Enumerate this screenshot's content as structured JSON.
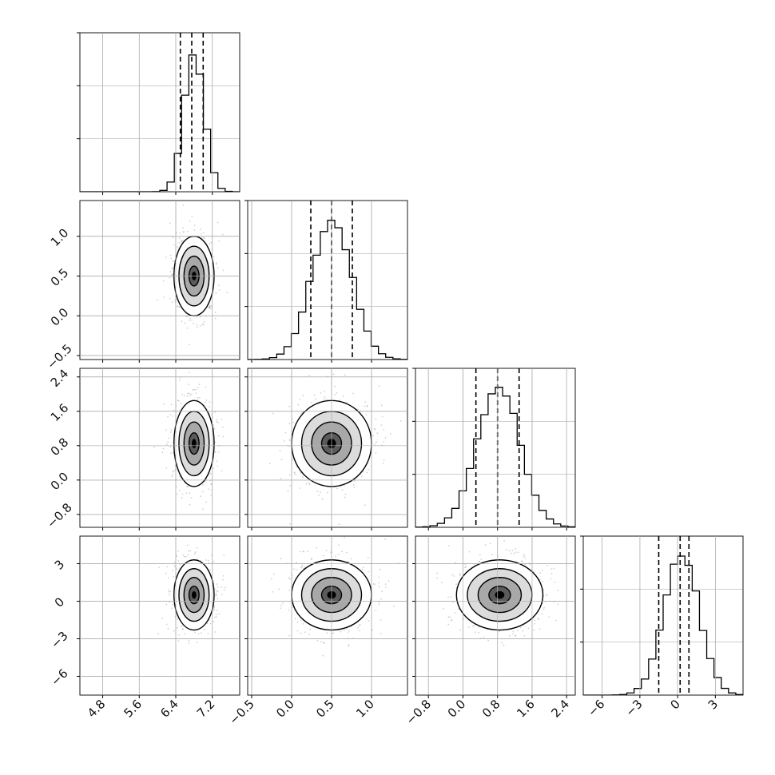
{
  "chart_data": {
    "type": "corner",
    "parameters": 4,
    "grid": true,
    "quantile_lines": "dashed",
    "axes": {
      "p0": {
        "range": [
          4.3,
          7.8
        ],
        "ticks": [
          4.8,
          5.6,
          6.4,
          7.2
        ],
        "tick_labels": [
          "4.8",
          "5.6",
          "6.4",
          "7.2"
        ]
      },
      "p1": {
        "range": [
          -0.55,
          1.45
        ],
        "ticks": [
          -0.5,
          0.0,
          0.5,
          1.0
        ],
        "tick_labels": [
          "−0.5",
          "0.0",
          "0.5",
          "1.0"
        ]
      },
      "p2": {
        "range": [
          -1.1,
          2.6
        ],
        "ticks": [
          -0.8,
          0.0,
          0.8,
          1.6,
          2.4
        ],
        "tick_labels": [
          "−0.8",
          "0.0",
          "0.8",
          "1.6",
          "2.4"
        ]
      },
      "p3": {
        "range": [
          -7.5,
          5.2
        ],
        "ticks": [
          -6,
          -3,
          0,
          3
        ],
        "tick_labels": [
          "−6",
          "−3",
          "0",
          "3"
        ]
      }
    },
    "marginals": [
      {
        "param": "p0",
        "quantiles": [
          6.5,
          6.75,
          7.0
        ],
        "mode": 6.8,
        "sigma": 0.22
      },
      {
        "param": "p1",
        "quantiles": [
          0.24,
          0.5,
          0.76
        ],
        "mode": 0.5,
        "sigma": 0.25
      },
      {
        "param": "p2",
        "quantiles": [
          0.3,
          0.8,
          1.3
        ],
        "mode": 0.82,
        "sigma": 0.5
      },
      {
        "param": "p3",
        "quantiles": [
          -1.5,
          0.2,
          0.9
        ],
        "mode": 0.3,
        "sigma": 1.4
      }
    ],
    "joint_peaks": [
      {
        "x": "p0",
        "y": "p1",
        "cx": 6.8,
        "cy": 0.5,
        "sx": 0.22,
        "sy": 0.25
      },
      {
        "x": "p0",
        "y": "p2",
        "cx": 6.8,
        "cy": 0.85,
        "sx": 0.22,
        "sy": 0.5
      },
      {
        "x": "p0",
        "y": "p3",
        "cx": 6.8,
        "cy": 0.5,
        "sx": 0.22,
        "sy": 1.4
      },
      {
        "x": "p1",
        "y": "p2",
        "cx": 0.5,
        "cy": 0.85,
        "sx": 0.25,
        "sy": 0.5
      },
      {
        "x": "p1",
        "y": "p3",
        "cx": 0.5,
        "cy": 0.5,
        "sx": 0.25,
        "sy": 1.4
      },
      {
        "x": "p2",
        "y": "p3",
        "cx": 0.85,
        "cy": 0.5,
        "sx": 0.5,
        "sy": 1.4
      }
    ],
    "colors": {
      "line": "#000000",
      "grid": "#b0b0b0",
      "scatter": "#9a9a9a"
    }
  }
}
